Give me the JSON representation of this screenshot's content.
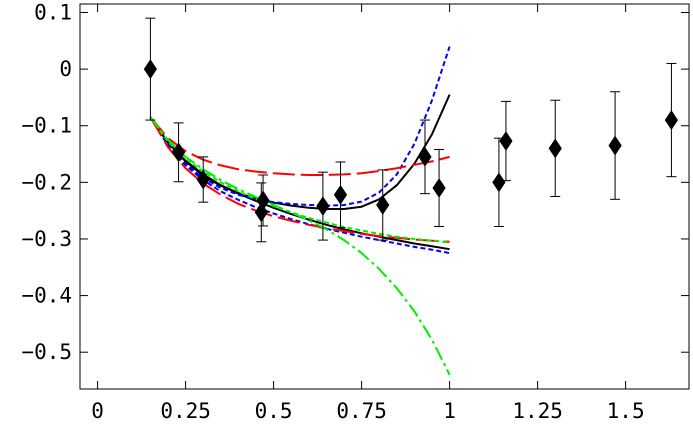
{
  "chart_data": {
    "type": "scatter",
    "title": "",
    "xlabel": "",
    "ylabel": "",
    "xlim": [
      -0.05,
      1.68
    ],
    "ylim": [
      -0.565,
      0.115
    ],
    "x_ticks": [
      0,
      0.25,
      0.5,
      0.75,
      1,
      1.25,
      1.5
    ],
    "x_tick_labels": [
      "0",
      "0.25",
      "0.5",
      "0.75",
      "1",
      "1.25",
      "1.5"
    ],
    "y_ticks": [
      0.1,
      0,
      -0.1,
      -0.2,
      -0.3,
      -0.4,
      -0.5
    ],
    "y_tick_labels": [
      "0.1",
      "0",
      "−0.1",
      "−0.2",
      "−0.3",
      "−0.4",
      "−0.5"
    ],
    "grid": false,
    "frame": true,
    "data_points": {
      "name": "data",
      "marker": "diamond",
      "color": "#000000",
      "x": [
        0.15,
        0.23,
        0.3,
        0.465,
        0.47,
        0.64,
        0.69,
        0.81,
        0.93,
        0.97,
        1.14,
        1.16,
        1.3,
        1.47,
        1.63
      ],
      "y": [
        0.0,
        -0.147,
        -0.195,
        -0.253,
        -0.232,
        -0.242,
        -0.222,
        -0.24,
        -0.155,
        -0.21,
        -0.2,
        -0.127,
        -0.14,
        -0.135,
        -0.09
      ],
      "err": [
        0.09,
        0.052,
        0.04,
        0.052,
        0.045,
        0.06,
        0.058,
        0.062,
        0.065,
        0.068,
        0.078,
        0.07,
        0.085,
        0.095,
        0.1
      ]
    },
    "series": [
      {
        "name": "black-solid-upturn",
        "color": "#000000",
        "dash": "solid",
        "x": [
          0.15,
          0.2,
          0.25,
          0.3,
          0.35,
          0.4,
          0.45,
          0.5,
          0.55,
          0.6,
          0.65,
          0.7,
          0.75,
          0.8,
          0.85,
          0.9,
          0.95,
          1.0
        ],
        "y": [
          -0.085,
          -0.13,
          -0.163,
          -0.188,
          -0.206,
          -0.219,
          -0.229,
          -0.236,
          -0.241,
          -0.245,
          -0.247,
          -0.247,
          -0.243,
          -0.23,
          -0.205,
          -0.167,
          -0.115,
          -0.045
        ]
      },
      {
        "name": "black-solid-lower",
        "color": "#000000",
        "dash": "solid",
        "x": [
          0.15,
          0.2,
          0.25,
          0.3,
          0.35,
          0.4,
          0.45,
          0.5,
          0.55,
          0.6,
          0.65,
          0.7,
          0.75,
          0.8,
          0.85,
          0.9,
          0.95,
          1.0
        ],
        "y": [
          -0.085,
          -0.13,
          -0.162,
          -0.186,
          -0.205,
          -0.22,
          -0.233,
          -0.245,
          -0.256,
          -0.266,
          -0.275,
          -0.283,
          -0.29,
          -0.296,
          -0.302,
          -0.308,
          -0.313,
          -0.318
        ]
      },
      {
        "name": "blue-dashed-upturn",
        "color": "#0000ff",
        "dash": "5,3",
        "x": [
          0.15,
          0.2,
          0.25,
          0.3,
          0.35,
          0.4,
          0.45,
          0.5,
          0.55,
          0.6,
          0.65,
          0.7,
          0.75,
          0.8,
          0.85,
          0.9,
          0.95,
          1.0
        ],
        "y": [
          -0.085,
          -0.133,
          -0.167,
          -0.192,
          -0.21,
          -0.222,
          -0.23,
          -0.235,
          -0.238,
          -0.24,
          -0.241,
          -0.24,
          -0.234,
          -0.218,
          -0.186,
          -0.132,
          -0.055,
          0.04
        ]
      },
      {
        "name": "blue-dashed-lower",
        "color": "#0000ff",
        "dash": "5,3",
        "x": [
          0.15,
          0.2,
          0.25,
          0.3,
          0.35,
          0.4,
          0.45,
          0.5,
          0.55,
          0.6,
          0.65,
          0.7,
          0.75,
          0.8,
          0.85,
          0.9,
          0.95,
          1.0
        ],
        "y": [
          -0.085,
          -0.135,
          -0.17,
          -0.196,
          -0.216,
          -0.231,
          -0.244,
          -0.255,
          -0.265,
          -0.274,
          -0.282,
          -0.289,
          -0.296,
          -0.302,
          -0.308,
          -0.314,
          -0.319,
          -0.325
        ]
      },
      {
        "name": "red-long-dashed-upper",
        "color": "#ff0000",
        "dash": "22,6",
        "x": [
          0.15,
          0.2,
          0.25,
          0.3,
          0.35,
          0.4,
          0.45,
          0.5,
          0.55,
          0.6,
          0.65,
          0.7,
          0.75,
          0.8,
          0.85,
          0.9,
          0.95,
          1.0
        ],
        "y": [
          -0.085,
          -0.122,
          -0.145,
          -0.16,
          -0.17,
          -0.177,
          -0.181,
          -0.184,
          -0.186,
          -0.187,
          -0.187,
          -0.186,
          -0.184,
          -0.18,
          -0.175,
          -0.169,
          -0.163,
          -0.155
        ]
      },
      {
        "name": "red-long-dashed-lower",
        "color": "#ff0000",
        "dash": "22,6",
        "x": [
          0.15,
          0.2,
          0.25,
          0.3,
          0.35,
          0.4,
          0.45,
          0.5,
          0.55,
          0.6,
          0.65,
          0.7,
          0.75,
          0.8,
          0.85,
          0.9,
          0.95,
          1.0
        ],
        "y": [
          -0.085,
          -0.138,
          -0.175,
          -0.202,
          -0.222,
          -0.238,
          -0.25,
          -0.26,
          -0.268,
          -0.275,
          -0.281,
          -0.286,
          -0.291,
          -0.295,
          -0.298,
          -0.301,
          -0.303,
          -0.305
        ]
      },
      {
        "name": "green-dash-dot",
        "color": "#00ee00",
        "dash": "14,4,3,4",
        "x": [
          0.15,
          0.2,
          0.25,
          0.3,
          0.35,
          0.4,
          0.45,
          0.5,
          0.55,
          0.6,
          0.65,
          0.7,
          0.75,
          0.8,
          0.85,
          0.9,
          0.95,
          1.0
        ],
        "y": [
          -0.085,
          -0.125,
          -0.155,
          -0.177,
          -0.196,
          -0.212,
          -0.226,
          -0.24,
          -0.253,
          -0.267,
          -0.283,
          -0.302,
          -0.325,
          -0.353,
          -0.387,
          -0.428,
          -0.478,
          -0.54
        ]
      },
      {
        "name": "green-dashed",
        "color": "#00ee00",
        "dash": "5,3",
        "x": [
          0.15,
          0.2,
          0.25,
          0.3,
          0.35,
          0.4,
          0.45,
          0.5,
          0.55,
          0.6,
          0.65,
          0.7,
          0.75,
          0.8,
          0.85,
          0.9,
          0.95,
          1.0
        ],
        "y": [
          -0.085,
          -0.128,
          -0.158,
          -0.181,
          -0.2,
          -0.216,
          -0.23,
          -0.242,
          -0.253,
          -0.263,
          -0.271,
          -0.279,
          -0.285,
          -0.291,
          -0.296,
          -0.3,
          -0.303,
          -0.306
        ]
      }
    ]
  }
}
